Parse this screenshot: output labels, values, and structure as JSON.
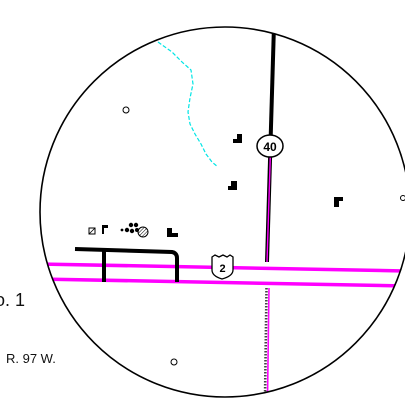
{
  "map": {
    "route_shields": {
      "north_south": "40",
      "east_west": "2"
    },
    "margin_labels": {
      "number_fragment": "o. 1",
      "range": "R. 97 W."
    },
    "colors": {
      "highway": "#ff00ff",
      "road": "#000000",
      "stream": "#00e5e5",
      "frame": "#000000",
      "background": "#ffffff"
    },
    "symbols": {
      "buildings": "building-icon",
      "hollow_markers": "circle-marker-icon",
      "tower": "flag-icon",
      "tank_cluster": "tank-cluster-icon",
      "hatched_tank": "hatched-circle-icon",
      "small_square": "square-marker-icon"
    }
  }
}
